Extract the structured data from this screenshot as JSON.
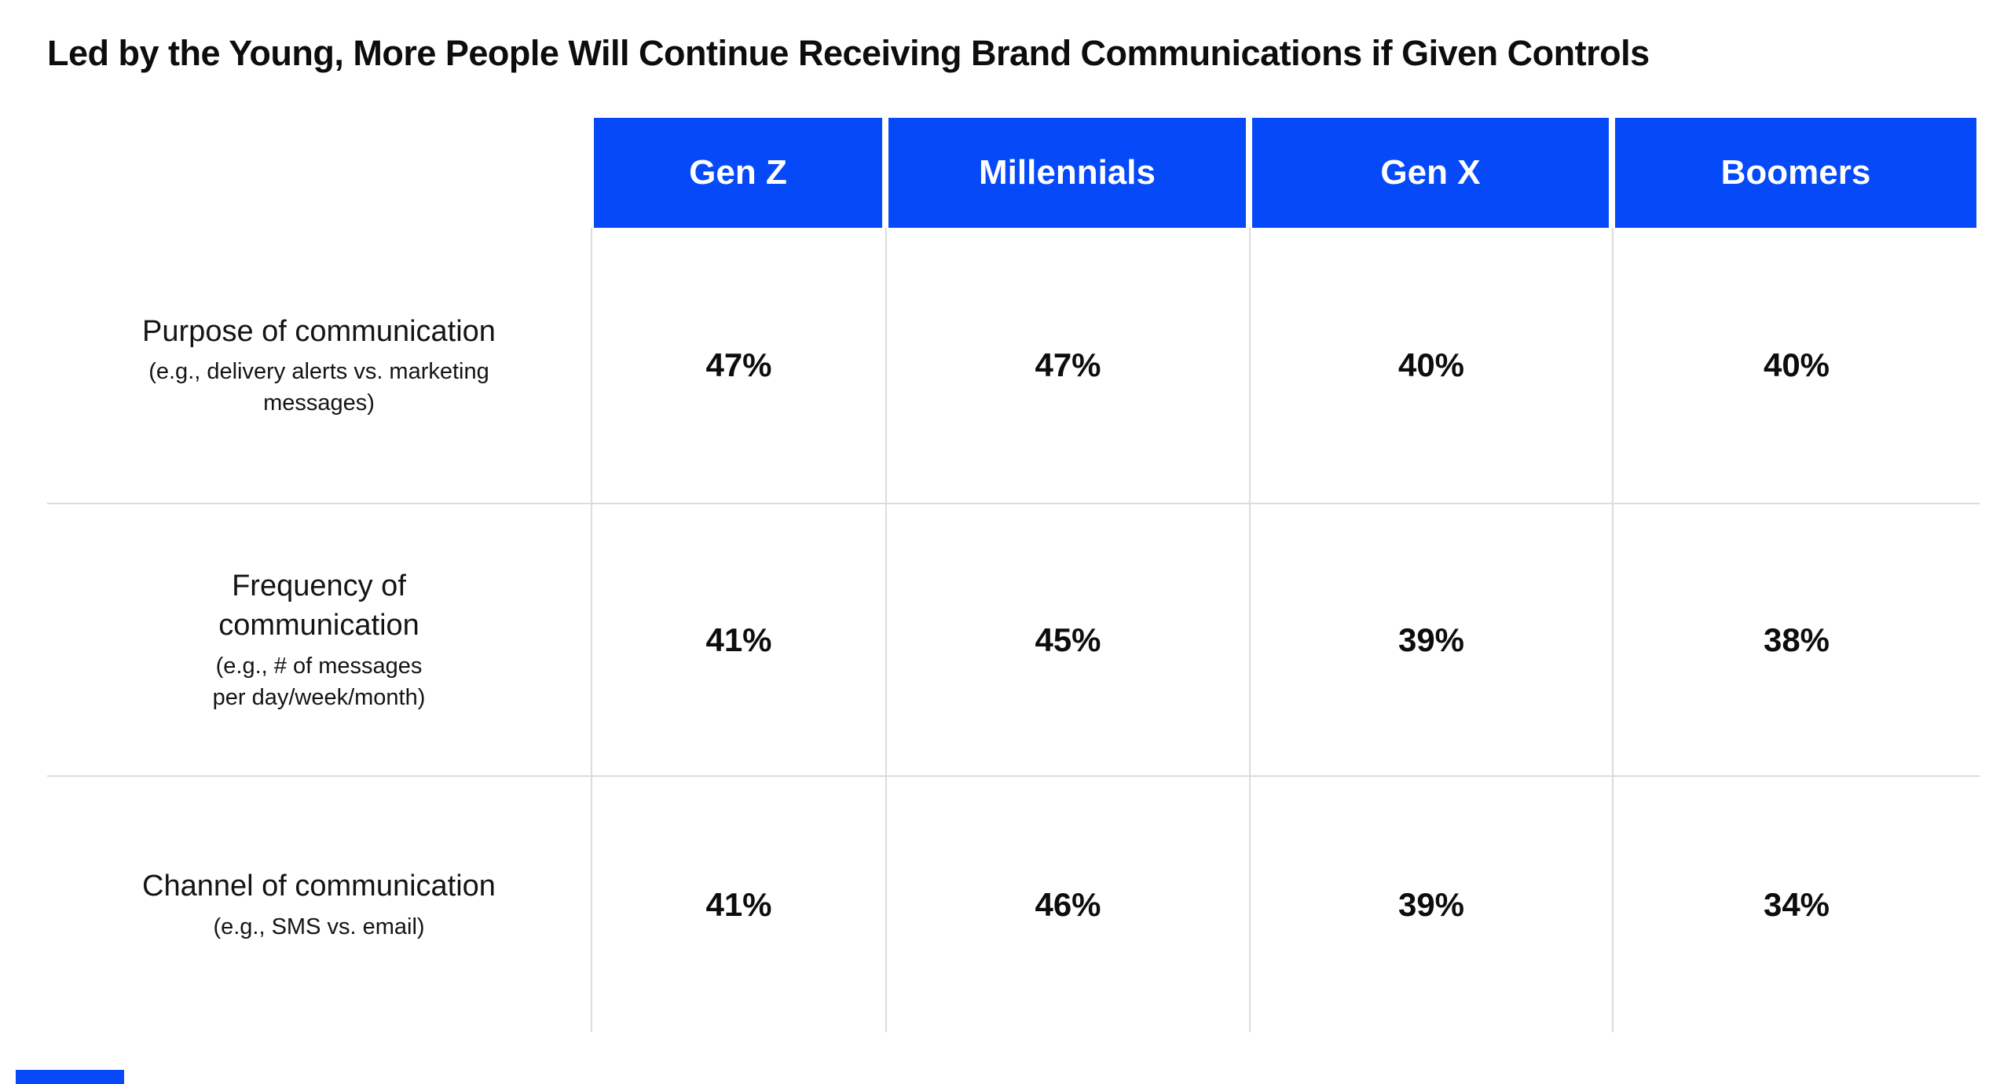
{
  "title": "Led by the Young, More People Will Continue Receiving Brand Communications if Given Controls",
  "colors": {
    "header_blue": "#0549F8",
    "grid_line": "#DCDCDC",
    "text": "#111111"
  },
  "chart_data": {
    "type": "table",
    "title": "Led by the Young, More People Will Continue Receiving Brand Communications if Given Controls",
    "columns": [
      "Gen Z",
      "Millennials",
      "Gen X",
      "Boomers"
    ],
    "rows": [
      {
        "label": "Purpose of communication",
        "label_lines": [
          "Purpose of communication",
          ""
        ],
        "sublabel": "(e.g., delivery alerts vs. marketing messages)",
        "sublabel_lines": [
          "(e.g., delivery alerts vs. marketing",
          "messages)"
        ],
        "values": [
          "47%",
          "47%",
          "40%",
          "40%"
        ]
      },
      {
        "label": "Frequency of communication",
        "label_lines": [
          "Frequency of",
          "communication"
        ],
        "sublabel": "(e.g., # of messages per day/week/month)",
        "sublabel_lines": [
          "(e.g., # of messages",
          "per day/week/month)"
        ],
        "values": [
          "41%",
          "45%",
          "39%",
          "38%"
        ]
      },
      {
        "label": "Channel of communication",
        "label_lines": [
          "Channel of communication",
          ""
        ],
        "sublabel": "(e.g., SMS vs. email)",
        "sublabel_lines": [
          "(e.g., SMS vs. email)",
          ""
        ],
        "values": [
          "41%",
          "46%",
          "39%",
          "34%"
        ]
      }
    ],
    "legend": null,
    "grid": "light-gray column and row separators",
    "header_style": "solid blue cells with white bold text"
  }
}
